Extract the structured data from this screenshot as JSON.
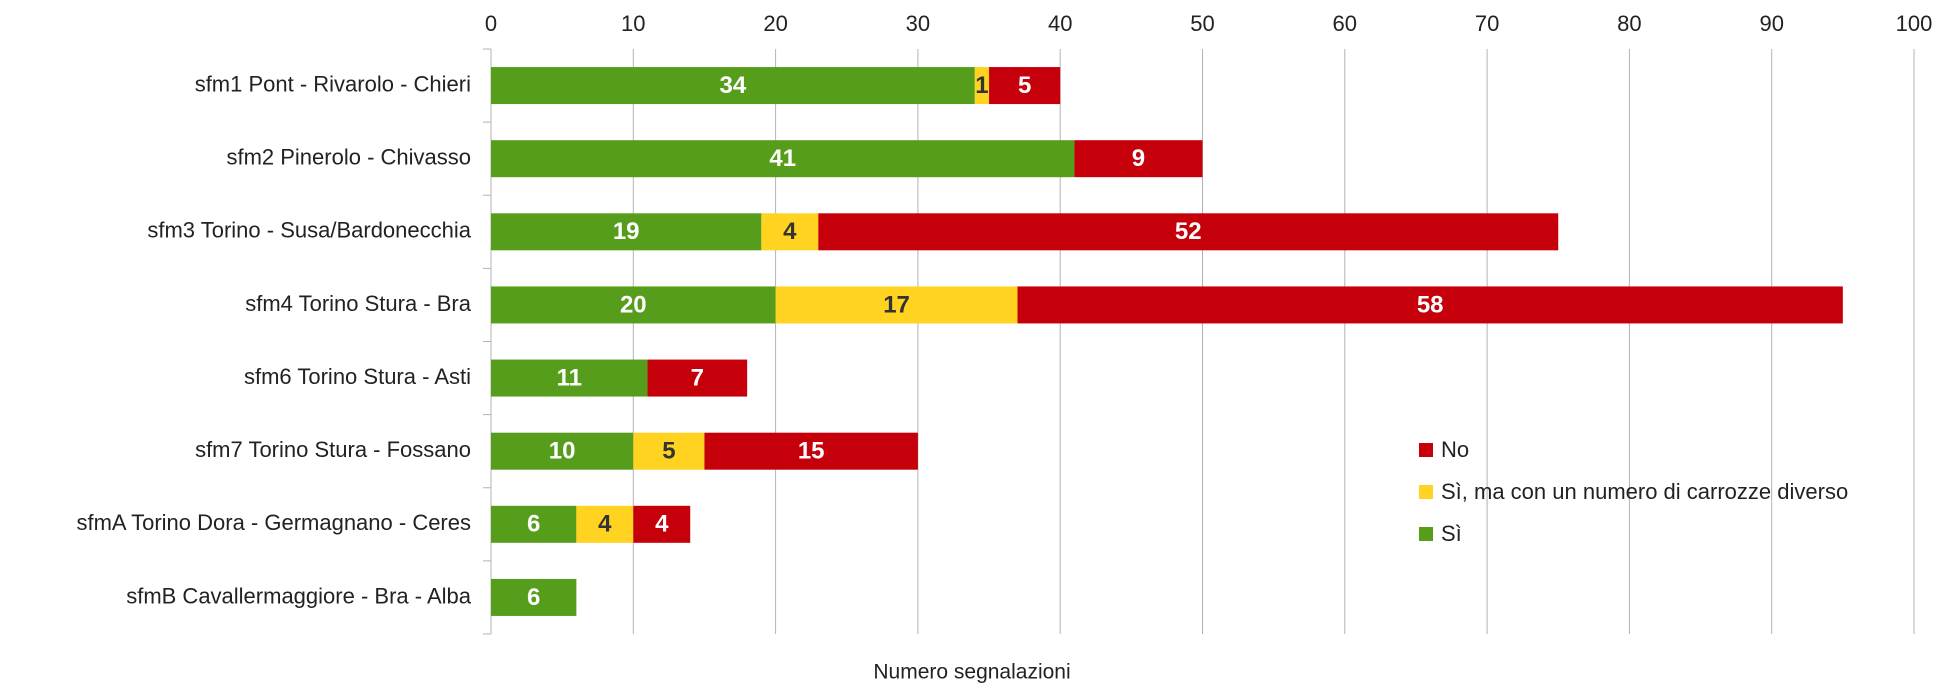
{
  "chart_data": {
    "type": "stacked-bar-horizontal",
    "x_label": "Numero segnalazioni",
    "categories": [
      "sfm1 Pont - Rivarolo - Chieri",
      "sfm2 Pinerolo - Chivasso",
      "sfm3 Torino - Susa/Bardonecchia",
      "sfm4 Torino Stura - Bra",
      "sfm6 Torino Stura - Asti",
      "sfm7 Torino Stura - Fossano",
      "sfmA Torino Dora - Germagnano - Ceres",
      "sfmB Cavallermaggiore - Bra - Alba"
    ],
    "series": [
      {
        "name": "Sì",
        "color": "#579d1c",
        "values": [
          34,
          41,
          19,
          20,
          11,
          10,
          6,
          6
        ]
      },
      {
        "name": "Sì, ma con un numero di carrozze diverso",
        "color": "#ffd320",
        "values": [
          1,
          null,
          4,
          17,
          null,
          5,
          4,
          null
        ]
      },
      {
        "name": "No",
        "color": "#c5000b",
        "values": [
          5,
          9,
          52,
          58,
          7,
          15,
          4,
          null
        ]
      }
    ],
    "xlim": [
      0,
      100
    ],
    "xticks": [
      0,
      10,
      20,
      30,
      40,
      50,
      60,
      70,
      80,
      90,
      100
    ],
    "grid": true,
    "legend": "right"
  }
}
